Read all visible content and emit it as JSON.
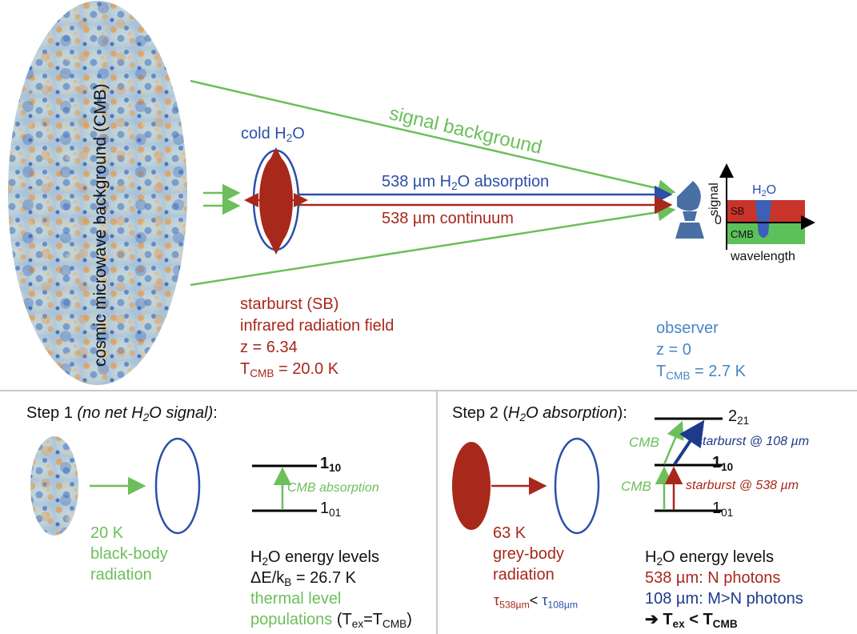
{
  "top": {
    "cmb_label": "cosmic microwave background (CMB)",
    "cold_water": [
      "cold H",
      "2",
      "O"
    ],
    "signal_background": "signal background",
    "absorption_line": [
      "538 µm H",
      "2",
      "O absorption"
    ],
    "continuum_line": "538 µm continuum",
    "starburst": {
      "line1": "starburst (SB)",
      "line2": "infrared radiation field",
      "line3": "z = 6.34",
      "tcmb": [
        "T",
        "CMB",
        " = 20.0 K"
      ]
    },
    "observer": {
      "line1": "observer",
      "line2": "z = 0",
      "tcmb": [
        "T",
        "CMB",
        " = 2.7 K"
      ]
    },
    "inset": {
      "y_label": "signal",
      "zero": "0",
      "sb": "SB",
      "cmb": "CMB",
      "water": [
        "H",
        "2",
        "O"
      ],
      "x_label": "wavelength"
    }
  },
  "step1": {
    "title": "Step 1 ",
    "title_italic": [
      "(no net H",
      "2",
      "O signal)"
    ],
    "title_end": ":",
    "temp": "20 K",
    "rad1": "black-body",
    "rad2": "radiation",
    "level_upper": [
      "1",
      "10"
    ],
    "level_lower": [
      "1",
      "01"
    ],
    "transition": "CMB absorption",
    "energy_title": [
      "H",
      "2",
      "O energy levels"
    ],
    "delta_e": [
      "ΔE/k",
      "B",
      " = 26.7 K"
    ],
    "thermal1": "thermal level",
    "thermal2": "populations",
    "tex": [
      "(T",
      "ex",
      "=T",
      "CMB",
      ")"
    ]
  },
  "step2": {
    "title": "Step 2 (",
    "title_italic": [
      "H",
      "2",
      "O absorption"
    ],
    "title_end": "):",
    "temp": "63 K",
    "rad1": "grey-body",
    "rad2": "radiation",
    "tau": [
      "τ",
      "538µm",
      "< ",
      "τ",
      "108µm"
    ],
    "level_top": [
      "2",
      "21"
    ],
    "level_mid": [
      "1",
      "10"
    ],
    "level_low": [
      "1",
      "01"
    ],
    "cmb_upper": "CMB",
    "cmb_lower": "CMB",
    "sb108": "starburst @ 108 µm",
    "sb538": "starburst @ 538 µm",
    "energy_title": [
      "H",
      "2",
      "O energy levels"
    ],
    "n_photons": "538 µm: N photons",
    "m_photons": "108 µm: M>N photons",
    "conclusion": [
      "➔ T",
      "ex",
      " < T",
      "CMB"
    ]
  },
  "colors": {
    "red": "#a8281c",
    "blue": "#2c4fa8",
    "green": "#6cbf5a",
    "light_blue": "#4a85c4",
    "dark_blue": "#1e3a8a"
  }
}
